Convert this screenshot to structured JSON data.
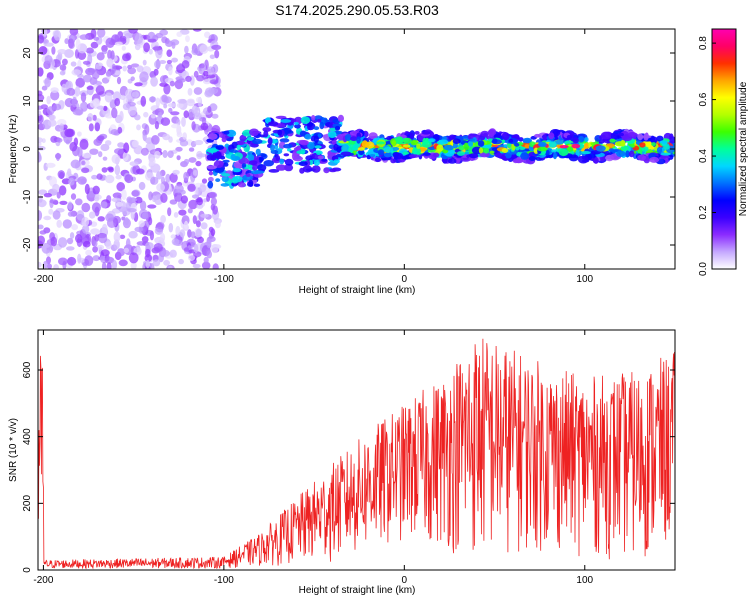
{
  "title": "S174.2025.290.05.53.R03",
  "chart_data": [
    {
      "type": "heatmap",
      "name": "spectrogram",
      "xlabel": "Height of straight line (km)",
      "ylabel": "Frequency (Hz)",
      "xlim": [
        -203,
        150
      ],
      "ylim": [
        -25,
        25
      ],
      "xticks": [
        -200,
        -100,
        0,
        100
      ],
      "yticks": [
        -20,
        -10,
        0,
        10,
        20
      ],
      "colorbar": {
        "label": "Normalized spectral amplitude",
        "range": [
          0.0,
          0.85
        ],
        "ticks": [
          "0.0",
          "0.2",
          "0.4",
          "0.6",
          "0.8"
        ],
        "colormap": [
          "#ffffff",
          "#c5a8ff",
          "#8b2cff",
          "#3a00ff",
          "#0000ff",
          "#0070ff",
          "#00d7ff",
          "#00ff9a",
          "#3cff00",
          "#b4ff00",
          "#ffff00",
          "#ffa500",
          "#ff3000",
          "#ff0066",
          "#ff00b0"
        ]
      },
      "regions": [
        {
          "description": "broadband noise",
          "x": [
            -203,
            -103
          ],
          "freq": [
            -25,
            25
          ],
          "amplitude": [
            0.02,
            0.12
          ]
        },
        {
          "description": "transition, scattered signal",
          "x": [
            -108,
            -35
          ],
          "freq": [
            -6,
            8
          ],
          "amplitude": [
            0.1,
            0.4
          ]
        },
        {
          "description": "narrowband signal around 0 Hz",
          "x": [
            -35,
            150
          ],
          "freq": [
            -2,
            3
          ],
          "amplitude": [
            0.3,
            0.85
          ]
        }
      ]
    },
    {
      "type": "line",
      "name": "snr",
      "xlabel": "Height of straight line (km)",
      "ylabel": "SNR (10 * v/v)",
      "xlim": [
        -203,
        150
      ],
      "ylim": [
        0,
        720
      ],
      "xticks": [
        -200,
        -100,
        0,
        100
      ],
      "yticks": [
        0,
        200,
        400,
        600
      ],
      "color": "#ee2222",
      "series_envelope": [
        {
          "x": -200,
          "low": 5,
          "high": 30
        },
        {
          "x": -100,
          "low": 5,
          "high": 40
        },
        {
          "x": -80,
          "low": 10,
          "high": 110
        },
        {
          "x": -40,
          "low": 20,
          "high": 320
        },
        {
          "x": -20,
          "low": 50,
          "high": 420
        },
        {
          "x": 0,
          "low": 80,
          "high": 500
        },
        {
          "x": 20,
          "low": 60,
          "high": 580
        },
        {
          "x": 40,
          "low": 20,
          "high": 720
        },
        {
          "x": 70,
          "low": 50,
          "high": 640
        },
        {
          "x": 100,
          "low": 40,
          "high": 580
        },
        {
          "x": 130,
          "low": 20,
          "high": 600
        },
        {
          "x": 150,
          "low": 60,
          "high": 660
        }
      ]
    }
  ]
}
